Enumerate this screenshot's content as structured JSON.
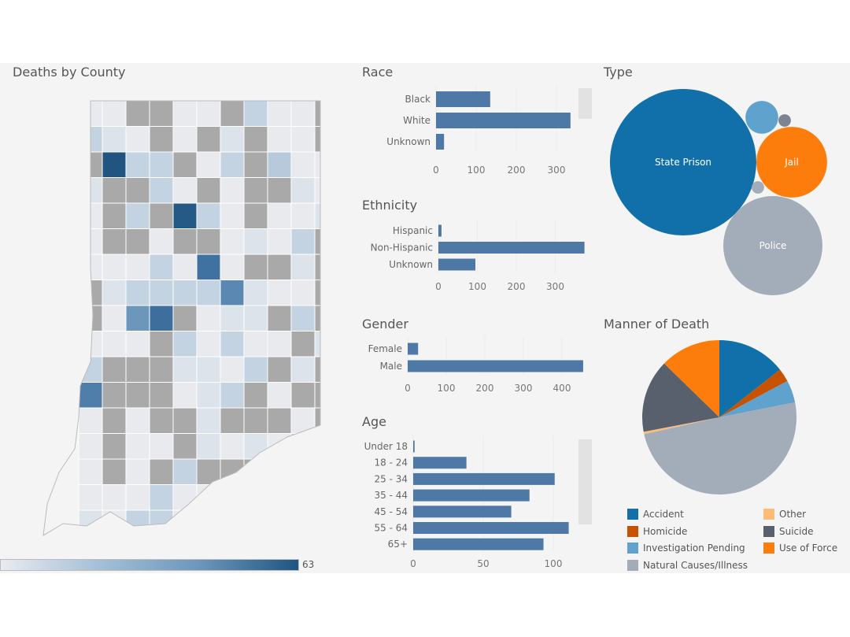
{
  "titles": {
    "map": "Deaths by County",
    "race": "Race",
    "ethnicity": "Ethnicity",
    "gender": "Gender",
    "age": "Age",
    "type": "Type",
    "manner": "Manner of Death"
  },
  "chart_data": [
    {
      "id": "map",
      "type": "heatmap",
      "title": "Deaths by County",
      "color_scale": {
        "max_label": "63",
        "min_color": "#e8ebef",
        "max_color": "#1f5580",
        "no_data_color": "#a9a9a9"
      }
    },
    {
      "id": "race",
      "type": "bar",
      "title": "Race",
      "categories": [
        "Black",
        "White",
        "Unknown"
      ],
      "values": [
        135,
        335,
        20
      ],
      "xticks": [
        "0",
        "100",
        "200",
        "300"
      ],
      "xlim": [
        0,
        350
      ],
      "color": "#4e79a7"
    },
    {
      "id": "ethnicity",
      "type": "bar",
      "title": "Ethnicity",
      "categories": [
        "Hispanic",
        "Non-Hispanic",
        "Unknown"
      ],
      "values": [
        8,
        375,
        95
      ],
      "xticks": [
        "0",
        "100",
        "200",
        "300"
      ],
      "xlim": [
        0,
        380
      ],
      "color": "#4e79a7"
    },
    {
      "id": "gender",
      "type": "bar",
      "title": "Gender",
      "categories": [
        "Female",
        "Male"
      ],
      "values": [
        27,
        455
      ],
      "xticks": [
        "0",
        "100",
        "200",
        "300",
        "400"
      ],
      "xlim": [
        0,
        460
      ],
      "color": "#4e79a7"
    },
    {
      "id": "age",
      "type": "bar",
      "title": "Age",
      "categories": [
        "Under 18",
        "18 - 24",
        "25 - 34",
        "35 - 44",
        "45 - 54",
        "55 - 64",
        "65+"
      ],
      "values": [
        1,
        38,
        101,
        83,
        70,
        111,
        93
      ],
      "xticks": [
        "0",
        "50",
        "100"
      ],
      "xlim": [
        0,
        115
      ],
      "color": "#4e79a7"
    },
    {
      "id": "type",
      "type": "bubble",
      "title": "Type",
      "series": [
        {
          "name": "State Prison",
          "value": 279,
          "color": "#1170aa"
        },
        {
          "name": "Police",
          "value": 128,
          "color": "#a3acb9"
        },
        {
          "name": "Jail",
          "value": 65,
          "color": "#fc7d0b"
        },
        {
          "name": "",
          "value": 14,
          "color": "#5fa2ce"
        },
        {
          "name": "",
          "value": 2,
          "color": "#7b848f"
        },
        {
          "name": "",
          "value": 2,
          "color": "#a3acb9"
        }
      ]
    },
    {
      "id": "manner",
      "type": "pie",
      "title": "Manner of Death",
      "categories": [
        "Accident",
        "Homicide",
        "Investigation Pending",
        "Natural Causes/Illness",
        "Other",
        "Suicide",
        "Use of Force"
      ],
      "values": [
        14.4,
        2.8,
        4.7,
        49.6,
        0.5,
        15.3,
        12.7
      ],
      "unit": "percent (estimated)",
      "colors": [
        "#1170aa",
        "#c85200",
        "#5fa2ce",
        "#a3acb9",
        "#ffbc79",
        "#57606c",
        "#fc7d0b"
      ],
      "legend": "bottom"
    }
  ]
}
